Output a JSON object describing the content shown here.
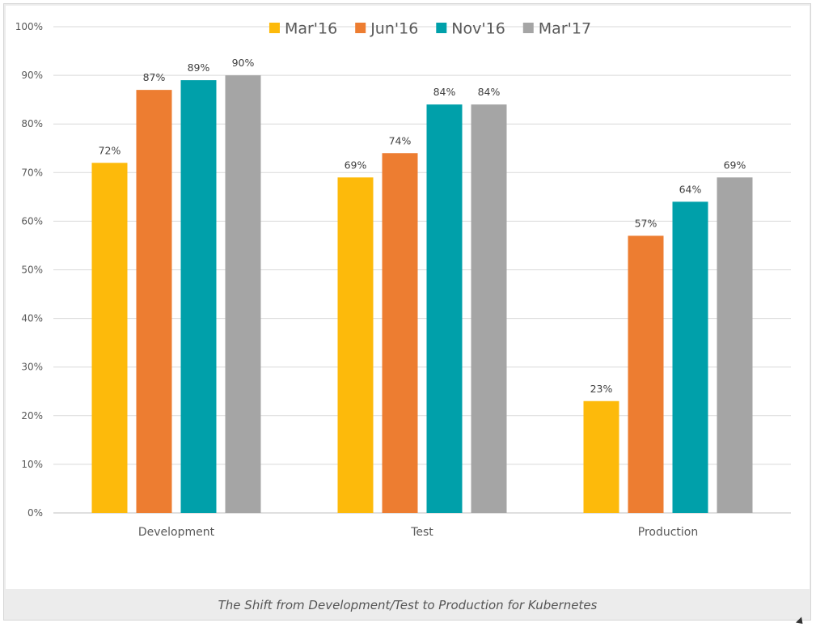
{
  "caption": "The Shift from Development/Test to Production for Kubernetes",
  "chart_data": {
    "type": "bar",
    "title": "",
    "xlabel": "",
    "ylabel": "",
    "categories": [
      "Development",
      "Test",
      "Production"
    ],
    "series": [
      {
        "name": "Mar'16",
        "color": "#FDBA0B",
        "values": [
          72,
          69,
          23
        ],
        "labels": [
          "72%",
          "69%",
          "23%"
        ]
      },
      {
        "name": "Jun'16",
        "color": "#ED7D31",
        "values": [
          87,
          74,
          57
        ],
        "labels": [
          "87%",
          "74%",
          "57%"
        ]
      },
      {
        "name": "Nov'16",
        "color": "#00A0AA",
        "values": [
          89,
          84,
          64
        ],
        "labels": [
          "89%",
          "84%",
          "64%"
        ]
      },
      {
        "name": "Mar'17",
        "color": "#A5A5A5",
        "values": [
          90,
          84,
          69
        ],
        "labels": [
          "90%",
          "84%",
          "69%"
        ]
      }
    ],
    "ylim": [
      0,
      100
    ],
    "yticks": [
      0,
      10,
      20,
      30,
      40,
      50,
      60,
      70,
      80,
      90,
      100
    ],
    "ytick_labels": [
      "0%",
      "10%",
      "20%",
      "30%",
      "40%",
      "50%",
      "60%",
      "70%",
      "80%",
      "90%",
      "100%"
    ],
    "grid": true,
    "legend": "top-center"
  }
}
